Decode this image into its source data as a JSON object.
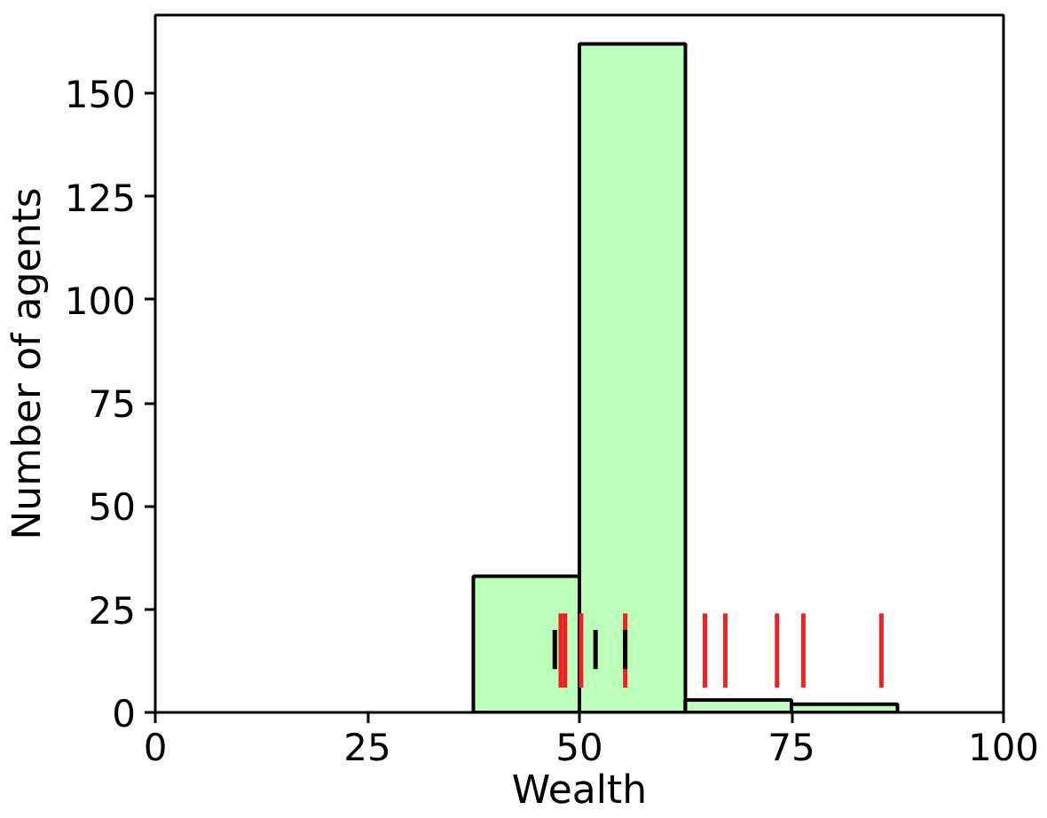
{
  "chart_data": {
    "type": "histogram",
    "xlabel": "Wealth",
    "ylabel": "Number of agents",
    "bins": [
      37.5,
      50,
      62.5,
      75,
      87.5
    ],
    "values": [
      33,
      162,
      3,
      2
    ],
    "color": "#bbffbb",
    "xlim": [
      0,
      100
    ],
    "xticks": [
      0,
      25,
      50,
      75,
      100
    ],
    "ylim": [
      0,
      169
    ],
    "yticks": [
      0,
      25,
      50,
      75,
      100,
      125,
      150
    ],
    "grid": false,
    "series": [
      {
        "type": "line",
        "color": "#ee2222",
        "x": [
          47.8,
          47.8
        ],
        "values": [
          6,
          24
        ]
      },
      {
        "type": "line",
        "color": "#ee2222",
        "x": [
          48.3,
          48.3
        ],
        "values": [
          6,
          24
        ]
      },
      {
        "type": "line",
        "color": "#ee2222",
        "x": [
          50.2,
          50.2
        ],
        "values": [
          6,
          24
        ]
      },
      {
        "type": "line",
        "color": "#ee2222",
        "x": [
          55.4,
          55.4
        ],
        "values": [
          6,
          24
        ]
      },
      {
        "type": "line",
        "color": "#ee2222",
        "x": [
          64.8,
          64.8
        ],
        "values": [
          6,
          24
        ]
      },
      {
        "type": "line",
        "color": "#ee2222",
        "x": [
          67.2,
          67.2
        ],
        "values": [
          6,
          24
        ]
      },
      {
        "type": "line",
        "color": "#ee2222",
        "x": [
          73.3,
          73.3
        ],
        "values": [
          6,
          24
        ]
      },
      {
        "type": "line",
        "color": "#ee2222",
        "x": [
          76.4,
          76.4
        ],
        "values": [
          6,
          24
        ]
      },
      {
        "type": "line",
        "color": "#ee2222",
        "x": [
          85.6,
          85.6
        ],
        "values": [
          6,
          24
        ]
      },
      {
        "type": "line",
        "color": "#000000",
        "x": [
          47.1,
          47.1
        ],
        "values": [
          10.5,
          20
        ]
      },
      {
        "type": "line",
        "color": "#000000",
        "x": [
          51.9,
          51.9
        ],
        "values": [
          10.5,
          20
        ]
      },
      {
        "type": "line",
        "color": "#000000",
        "x": [
          55.4,
          55.4
        ],
        "values": [
          10.5,
          20
        ]
      }
    ]
  }
}
